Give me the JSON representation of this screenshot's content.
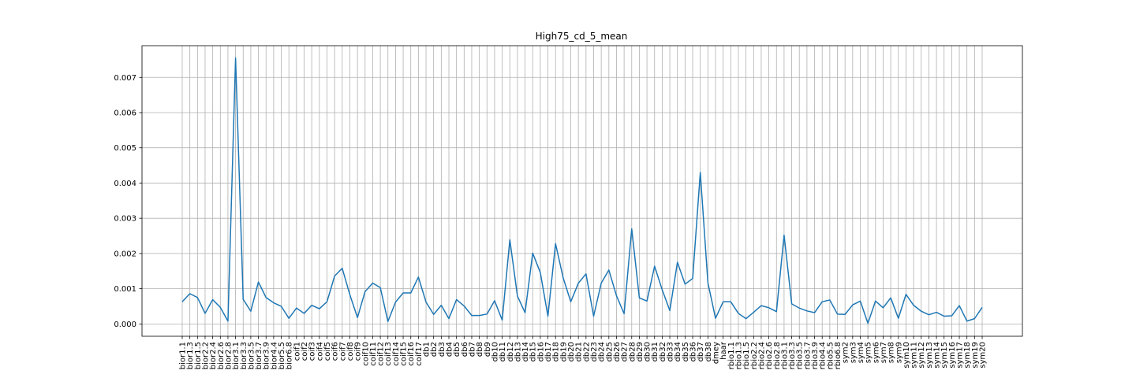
{
  "chart_data": {
    "type": "line",
    "title": "High75_cd_5_mean",
    "xlabel": "",
    "ylabel": "",
    "ylim": [
      -0.00035,
      0.0079
    ],
    "grid": true,
    "yticks": [
      0.0,
      0.001,
      0.002,
      0.003,
      0.004,
      0.005,
      0.006,
      0.007
    ],
    "ytick_labels": [
      "0.000",
      "0.001",
      "0.002",
      "0.003",
      "0.004",
      "0.005",
      "0.006",
      "0.007"
    ],
    "line_color": "#1f77b4",
    "grid_color": "#b0b0b0",
    "categories": [
      "bior1.1",
      "bior1.3",
      "bior1.5",
      "bior2.2",
      "bior2.4",
      "bior2.6",
      "bior2.8",
      "bior3.1",
      "bior3.3",
      "bior3.5",
      "bior3.7",
      "bior3.9",
      "bior4.4",
      "bior5.5",
      "bior6.8",
      "coif1",
      "coif2",
      "coif3",
      "coif4",
      "coif5",
      "coif6",
      "coif7",
      "coif8",
      "coif9",
      "coif10",
      "coif11",
      "coif12",
      "coif13",
      "coif14",
      "coif15",
      "coif16",
      "coif17",
      "db1",
      "db2",
      "db3",
      "db4",
      "db5",
      "db6",
      "db7",
      "db8",
      "db9",
      "db10",
      "db11",
      "db12",
      "db13",
      "db14",
      "db15",
      "db16",
      "db17",
      "db18",
      "db19",
      "db20",
      "db21",
      "db22",
      "db23",
      "db24",
      "db25",
      "db26",
      "db27",
      "db28",
      "db29",
      "db30",
      "db31",
      "db32",
      "db33",
      "db34",
      "db35",
      "db36",
      "db37",
      "db38",
      "dmey",
      "haar",
      "rbio1.1",
      "rbio1.3",
      "rbio1.5",
      "rbio2.2",
      "rbio2.4",
      "rbio2.6",
      "rbio2.8",
      "rbio3.1",
      "rbio3.3",
      "rbio3.5",
      "rbio3.7",
      "rbio3.9",
      "rbio4.4",
      "rbio5.5",
      "rbio6.8",
      "sym2",
      "sym3",
      "sym4",
      "sym5",
      "sym6",
      "sym7",
      "sym8",
      "sym9",
      "sym10",
      "sym11",
      "sym12",
      "sym13",
      "sym14",
      "sym15",
      "sym16",
      "sym17",
      "sym18",
      "sym19",
      "sym20"
    ],
    "series": [
      {
        "values": [
          0.00063,
          0.00086,
          0.00075,
          0.0003,
          0.00069,
          0.00047,
          8e-05,
          0.00755,
          0.0007,
          0.00036,
          0.00119,
          0.00075,
          0.0006,
          0.0005,
          0.00016,
          0.00045,
          0.0003,
          0.00053,
          0.00043,
          0.00063,
          0.00136,
          0.00158,
          0.00083,
          0.00018,
          0.00092,
          0.00116,
          0.00103,
          7e-05,
          0.00062,
          0.00088,
          0.00088,
          0.00133,
          0.00062,
          0.00027,
          0.00053,
          0.00015,
          0.00069,
          0.00051,
          0.00024,
          0.00024,
          0.00028,
          0.00066,
          0.00011,
          0.00239,
          0.00079,
          0.00032,
          0.00201,
          0.00146,
          0.00022,
          0.00228,
          0.00131,
          0.00063,
          0.00116,
          0.00142,
          0.00022,
          0.00116,
          0.00153,
          0.0008,
          0.00029,
          0.0027,
          0.00074,
          0.00065,
          0.00164,
          0.00097,
          0.00038,
          0.00175,
          0.00113,
          0.00129,
          0.0043,
          0.00117,
          0.00016,
          0.00063,
          0.00063,
          0.0003,
          0.00015,
          0.00033,
          0.00052,
          0.00046,
          0.00035,
          0.00252,
          0.00057,
          0.00045,
          0.00037,
          0.00032,
          0.00063,
          0.00068,
          0.00028,
          0.00027,
          0.00054,
          0.00065,
          2e-05,
          0.00065,
          0.00046,
          0.00074,
          0.00016,
          0.00084,
          0.00053,
          0.00036,
          0.00026,
          0.00033,
          0.00022,
          0.00023,
          0.00052,
          8e-05,
          0.00015,
          0.00047
        ]
      }
    ]
  }
}
